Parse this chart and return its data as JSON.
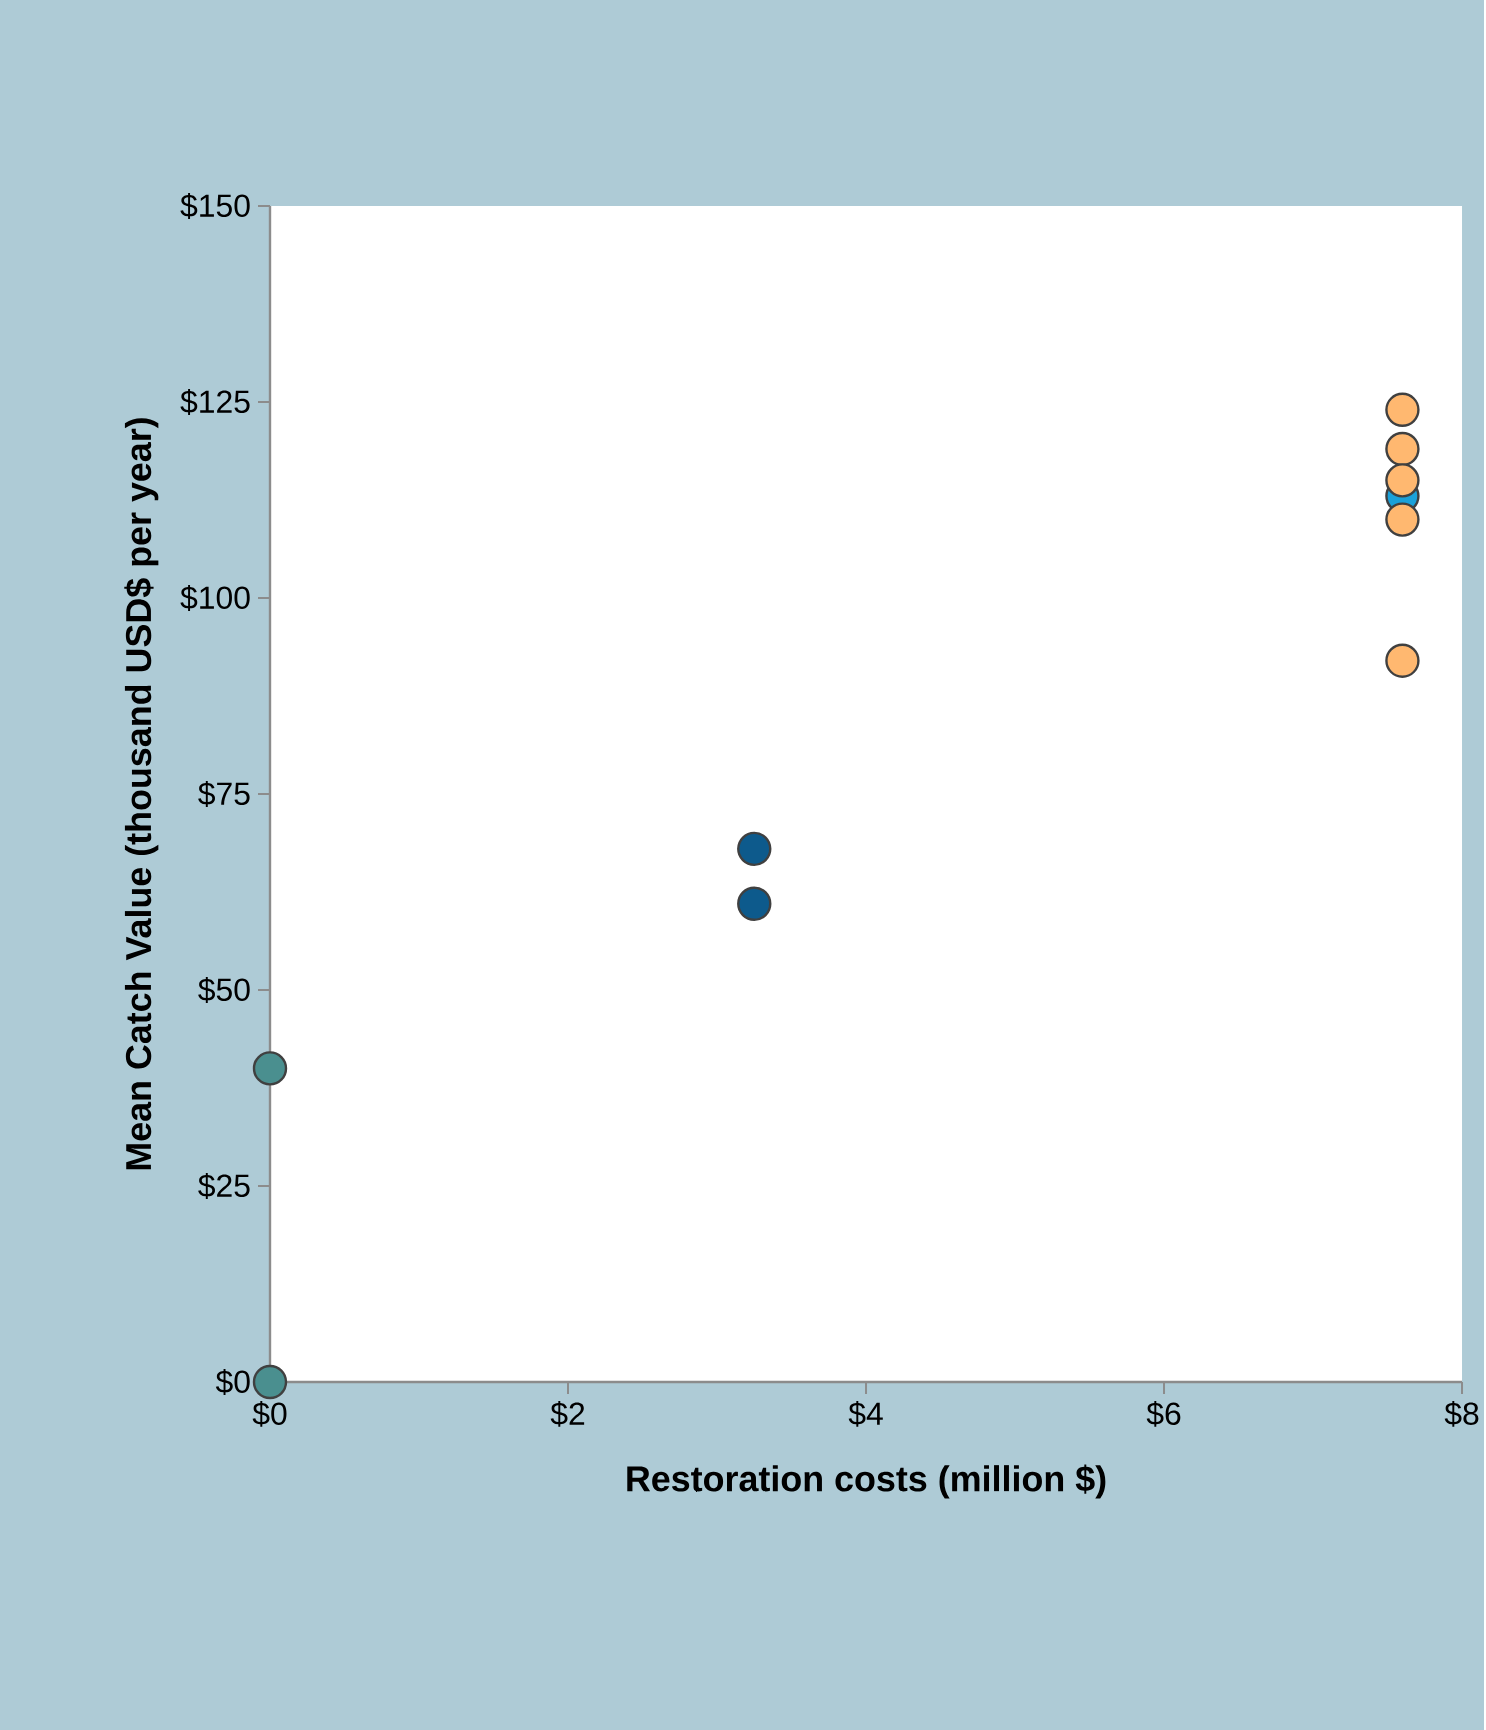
{
  "chart_data": {
    "type": "scatter",
    "xlabel": "Restoration costs (million $)",
    "ylabel": "Mean Catch Value (thousand USD$ per year)",
    "marker": "circle",
    "xlim": [
      0,
      8
    ],
    "ylim": [
      0,
      150
    ],
    "xticks": [
      {
        "value": 0,
        "label": "$0"
      },
      {
        "value": 2,
        "label": "$2"
      },
      {
        "value": 4,
        "label": "$4"
      },
      {
        "value": 6,
        "label": "$6"
      },
      {
        "value": 8,
        "label": "$8"
      }
    ],
    "yticks": [
      {
        "value": 0,
        "label": "$0"
      },
      {
        "value": 25,
        "label": "$25"
      },
      {
        "value": 50,
        "label": "$50"
      },
      {
        "value": 75,
        "label": "$75"
      },
      {
        "value": 100,
        "label": "$100"
      },
      {
        "value": 125,
        "label": "$125"
      },
      {
        "value": 150,
        "label": "$150"
      }
    ],
    "series": [
      {
        "color": "#4a8f8f",
        "x": [
          0,
          0
        ],
        "values": [
          40,
          0
        ]
      },
      {
        "color": "#0d5a8c",
        "x": [
          3.25,
          3.25
        ],
        "values": [
          68,
          61
        ]
      },
      {
        "color": "#1ba1d9",
        "x": [
          7.6
        ],
        "values": [
          113
        ]
      },
      {
        "color": "#ffb870",
        "x": [
          7.6,
          7.6,
          7.6,
          7.6,
          7.6
        ],
        "values": [
          124,
          119,
          115,
          110,
          92
        ]
      }
    ]
  }
}
